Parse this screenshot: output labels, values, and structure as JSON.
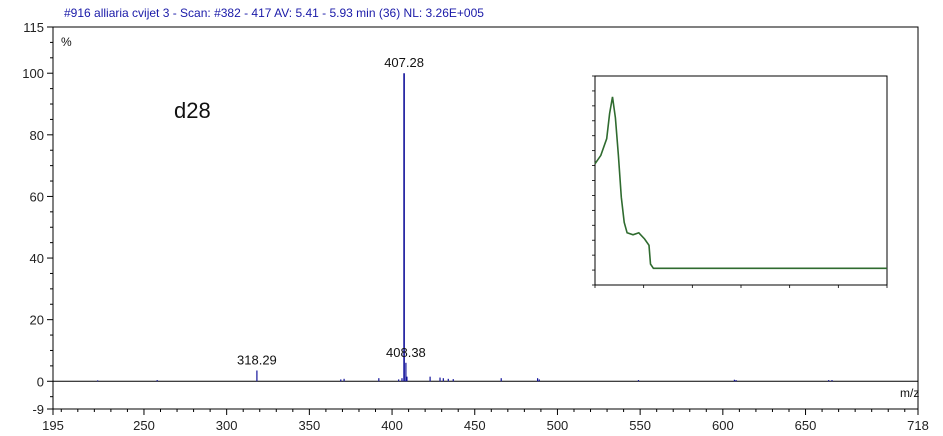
{
  "header": {
    "title": "#916 alliaria cvijet 3 - Scan: #382 - 417  AV: 5.41 - 5.93 min (36) NL: 3.26E+005"
  },
  "chart_data": {
    "type": "bar",
    "subtype": "mass-spectrum-stick",
    "title": "#916 alliaria cvijet 3 - Scan: #382 - 417  AV: 5.41 - 5.93 min (36) NL: 3.26E+005",
    "xlabel": "m/z",
    "ylabel": "%",
    "xlim": [
      195,
      718
    ],
    "ylim": [
      -9,
      115
    ],
    "x_ticks": [
      195,
      250,
      300,
      350,
      400,
      450,
      500,
      550,
      600,
      650,
      718
    ],
    "y_ticks": [
      -9,
      0,
      20,
      40,
      60,
      80,
      100,
      115
    ],
    "sample_label": "d28",
    "peaks": [
      {
        "mz": 222.0,
        "intensity": 0.3
      },
      {
        "mz": 258.0,
        "intensity": 0.4
      },
      {
        "mz": 318.29,
        "intensity": 3.5,
        "label": "318.29"
      },
      {
        "mz": 369.0,
        "intensity": 0.6
      },
      {
        "mz": 371.0,
        "intensity": 0.8
      },
      {
        "mz": 392.0,
        "intensity": 1.0
      },
      {
        "mz": 404.0,
        "intensity": 0.6
      },
      {
        "mz": 406.0,
        "intensity": 1.0
      },
      {
        "mz": 407.28,
        "intensity": 100.0,
        "label": "407.28"
      },
      {
        "mz": 408.38,
        "intensity": 6.0,
        "label": "408.38"
      },
      {
        "mz": 409.0,
        "intensity": 1.5
      },
      {
        "mz": 423.0,
        "intensity": 1.5
      },
      {
        "mz": 429.0,
        "intensity": 1.2
      },
      {
        "mz": 431.0,
        "intensity": 1.0
      },
      {
        "mz": 434.0,
        "intensity": 0.8
      },
      {
        "mz": 437.0,
        "intensity": 0.7
      },
      {
        "mz": 466.0,
        "intensity": 1.0
      },
      {
        "mz": 488.0,
        "intensity": 1.0
      },
      {
        "mz": 489.0,
        "intensity": 0.6
      },
      {
        "mz": 549.0,
        "intensity": 0.4
      },
      {
        "mz": 607.0,
        "intensity": 0.5
      },
      {
        "mz": 608.0,
        "intensity": 0.4
      },
      {
        "mz": 664.0,
        "intensity": 0.4
      },
      {
        "mz": 666.0,
        "intensity": 0.4
      }
    ],
    "colors": {
      "header": "#1a1aa8",
      "spectrum": "#10109a",
      "axis": "#000000",
      "inset_trace": "#2f6b2f"
    },
    "inset": {
      "type": "line",
      "description_visible": "small inset trace (illegible tick labels)",
      "points": [
        [
          0.0,
          0.58
        ],
        [
          0.02,
          0.62
        ],
        [
          0.04,
          0.7
        ],
        [
          0.05,
          0.82
        ],
        [
          0.06,
          0.9
        ],
        [
          0.07,
          0.8
        ],
        [
          0.08,
          0.62
        ],
        [
          0.09,
          0.42
        ],
        [
          0.1,
          0.3
        ],
        [
          0.11,
          0.25
        ],
        [
          0.13,
          0.24
        ],
        [
          0.15,
          0.25
        ],
        [
          0.17,
          0.22
        ],
        [
          0.185,
          0.19
        ],
        [
          0.19,
          0.1
        ],
        [
          0.2,
          0.08
        ],
        [
          0.3,
          0.08
        ],
        [
          0.5,
          0.08
        ],
        [
          0.7,
          0.08
        ],
        [
          0.85,
          0.08
        ],
        [
          1.0,
          0.08
        ]
      ]
    }
  }
}
